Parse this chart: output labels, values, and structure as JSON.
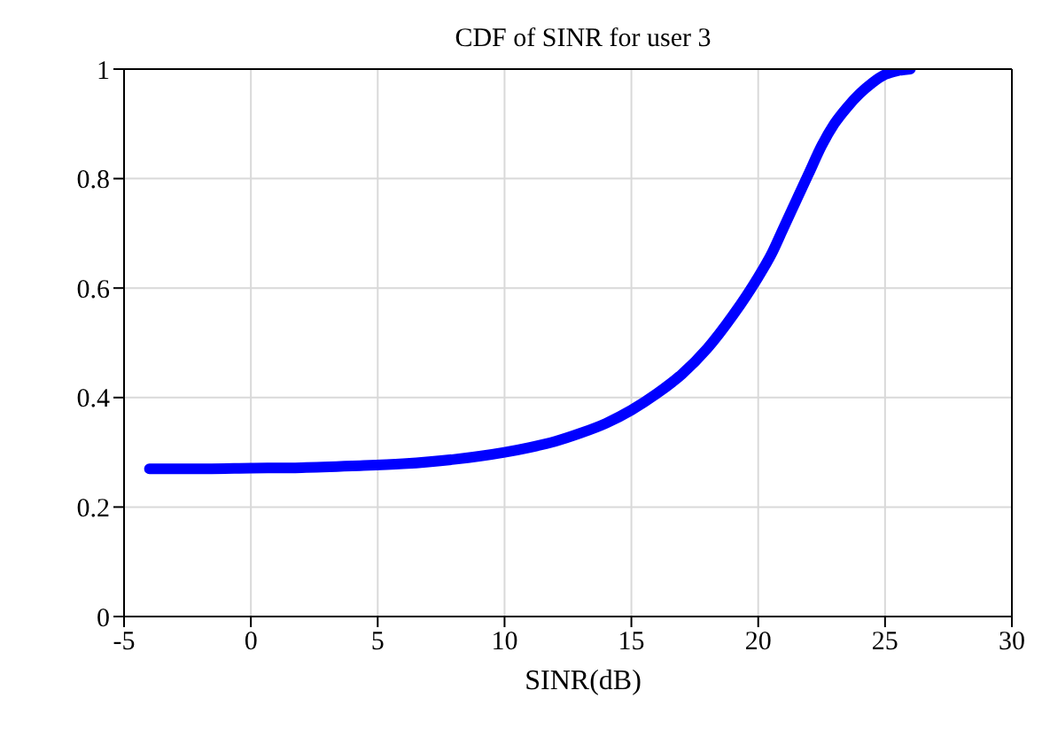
{
  "chart_data": {
    "type": "line",
    "title": "CDF of SINR for user 3",
    "xlabel": "SINR(dB)",
    "x": [
      -4,
      -2,
      0,
      2,
      4,
      6,
      8,
      10,
      11,
      12,
      13,
      14,
      15,
      16,
      17,
      18,
      19,
      20,
      20.5,
      21,
      21.5,
      22,
      22.5,
      23,
      23.5,
      24,
      24.5,
      25,
      25.5,
      26
    ],
    "series": [
      {
        "color": "#0000ff",
        "values": [
          0.27,
          0.27,
          0.271,
          0.272,
          0.275,
          0.279,
          0.287,
          0.3,
          0.309,
          0.32,
          0.335,
          0.353,
          0.377,
          0.407,
          0.443,
          0.49,
          0.55,
          0.62,
          0.66,
          0.71,
          0.76,
          0.81,
          0.86,
          0.9,
          0.93,
          0.955,
          0.975,
          0.99,
          0.997,
          1.0
        ]
      }
    ],
    "xlim": [
      -5,
      30
    ],
    "xticks": [
      -5,
      0,
      5,
      10,
      15,
      20,
      25,
      30
    ],
    "ylim": [
      0,
      1
    ],
    "yticks": [
      0,
      0.2,
      0.4,
      0.6,
      0.8,
      1
    ],
    "grid": true,
    "marker": "none",
    "line_style": "solid"
  }
}
